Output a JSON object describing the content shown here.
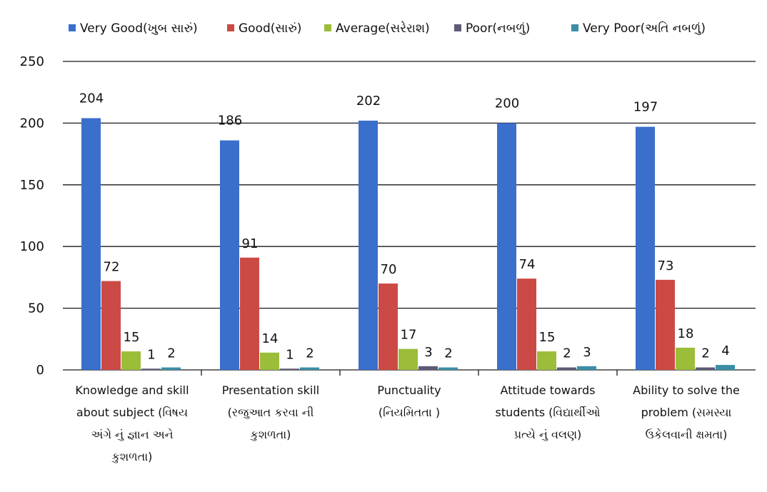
{
  "chart_data": {
    "type": "bar",
    "categories": [
      [
        "Knowledge and skill",
        "about subject (વિષય",
        "અંગે નું જ્ઞાન અને",
        "કુશળતા)"
      ],
      [
        "Presentation skill",
        "(રજુઆત કરવા ની",
        "કુશળતા)"
      ],
      [
        "Punctuality",
        "(નિયમિતતા )"
      ],
      [
        "Attitude towards",
        "students (વિદ્યાર્થીઓ",
        "પ્રત્યે નું  વલણ)"
      ],
      [
        "Ability to solve the",
        "problem (સમસ્યા",
        "ઉકેલવાની ક્ષમતા)"
      ]
    ],
    "series": [
      {
        "name": "Very Good(ખુબ સારું)",
        "color": "#3a6fcc",
        "values": [
          204,
          186,
          202,
          200,
          197
        ]
      },
      {
        "name": "Good(સારું)",
        "color": "#cc4a45",
        "values": [
          72,
          91,
          70,
          74,
          73
        ]
      },
      {
        "name": "Average(સરેરાશ)",
        "color": "#9bbd3a",
        "values": [
          15,
          14,
          17,
          15,
          18
        ]
      },
      {
        "name": "Poor(નબળું)",
        "color": "#5e5a78",
        "values": [
          1,
          1,
          3,
          2,
          2
        ]
      },
      {
        "name": "Very Poor(અતિ નબળું)",
        "color": "#3a8ea6",
        "values": [
          2,
          2,
          2,
          3,
          4
        ]
      }
    ],
    "ylim": [
      0,
      250
    ],
    "yticks": [
      0,
      50,
      100,
      150,
      200,
      250
    ],
    "grid": true,
    "legend": "top"
  }
}
